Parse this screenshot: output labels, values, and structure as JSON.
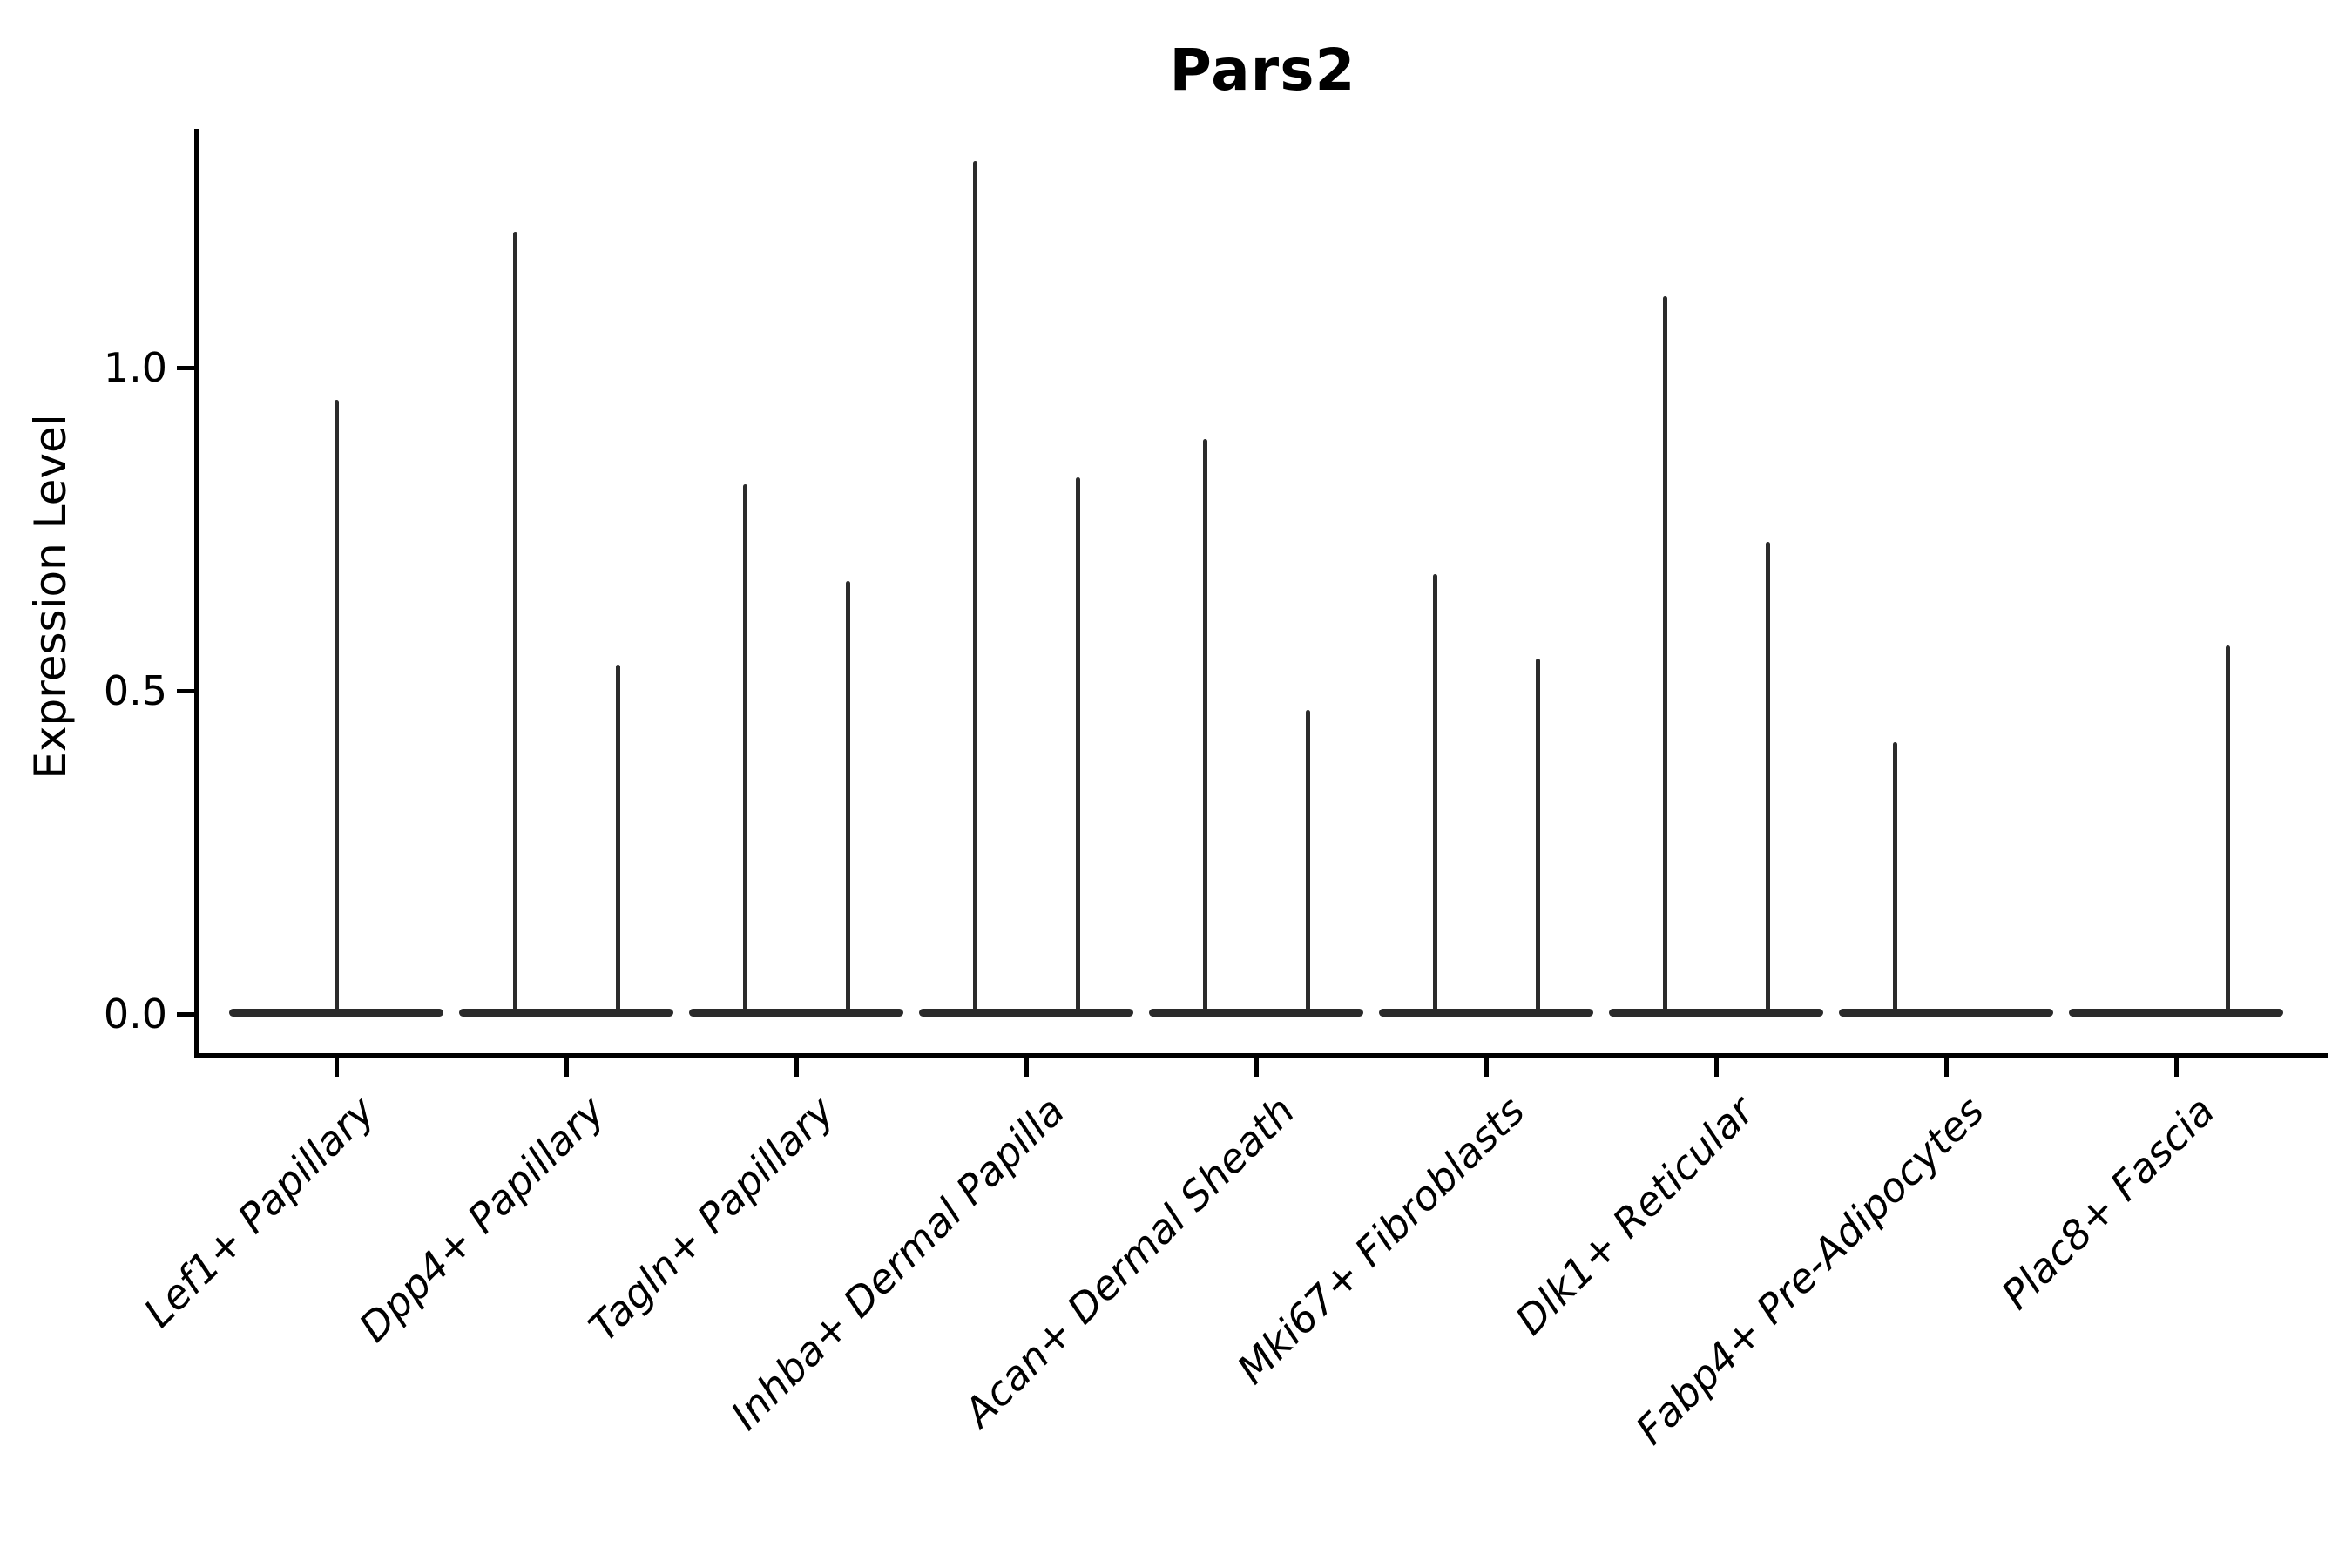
{
  "title": "Pars2",
  "ylabel": "Expression Level",
  "chart_data": {
    "type": "violin",
    "title": "Pars2",
    "xlabel": "",
    "ylabel": "Expression Level",
    "ylim": [
      -0.06,
      1.37
    ],
    "grid": false,
    "legend": "none",
    "line_color": "#2b2b2b",
    "text_color": "#000000",
    "yticks": [
      {
        "label": "0.0",
        "value": 0.0
      },
      {
        "label": "0.5",
        "value": 0.5
      },
      {
        "label": "1.0",
        "value": 1.0
      }
    ],
    "categories": [
      "Lef1+ Papillary",
      "Dpp4+ Papillary",
      "Tagln+ Papillary",
      "Inhba+ Dermal Papilla",
      "Acan+ Dermal Sheath",
      "Mki67+ Fibroblasts",
      "Dlk1+ Reticular",
      "Fabp4+ Pre-Adipocytes",
      "Plac8+ Fascia"
    ],
    "violins": [
      {
        "category": "Lef1+ Papillary",
        "baseline_value": 0.0,
        "spikes": [
          {
            "position": "center",
            "max_expression": 0.95
          }
        ]
      },
      {
        "category": "Dpp4+ Papillary",
        "baseline_value": 0.0,
        "spikes": [
          {
            "position": "left",
            "max_expression": 1.21
          },
          {
            "position": "right",
            "max_expression": 0.54
          }
        ]
      },
      {
        "category": "Tagln+ Papillary",
        "baseline_value": 0.0,
        "spikes": [
          {
            "position": "left",
            "max_expression": 0.82
          },
          {
            "position": "right",
            "max_expression": 0.67
          }
        ]
      },
      {
        "category": "Inhba+ Dermal Papilla",
        "baseline_value": 0.0,
        "spikes": [
          {
            "position": "left",
            "max_expression": 1.32
          },
          {
            "position": "right",
            "max_expression": 0.83
          }
        ]
      },
      {
        "category": "Acan+ Dermal Sheath",
        "baseline_value": 0.0,
        "spikes": [
          {
            "position": "left",
            "max_expression": 0.89
          },
          {
            "position": "right",
            "max_expression": 0.47
          }
        ]
      },
      {
        "category": "Mki67+ Fibroblasts",
        "baseline_value": 0.0,
        "spikes": [
          {
            "position": "left",
            "max_expression": 0.68
          },
          {
            "position": "right",
            "max_expression": 0.55
          }
        ]
      },
      {
        "category": "Dlk1+ Reticular",
        "baseline_value": 0.0,
        "spikes": [
          {
            "position": "left",
            "max_expression": 1.11
          },
          {
            "position": "right",
            "max_expression": 0.73
          }
        ]
      },
      {
        "category": "Fabp4+ Pre-Adipocytes",
        "baseline_value": 0.0,
        "spikes": [
          {
            "position": "left",
            "max_expression": 0.42
          }
        ]
      },
      {
        "category": "Plac8+ Fascia",
        "baseline_value": 0.0,
        "spikes": [
          {
            "position": "right",
            "max_expression": 0.57
          }
        ]
      }
    ]
  }
}
